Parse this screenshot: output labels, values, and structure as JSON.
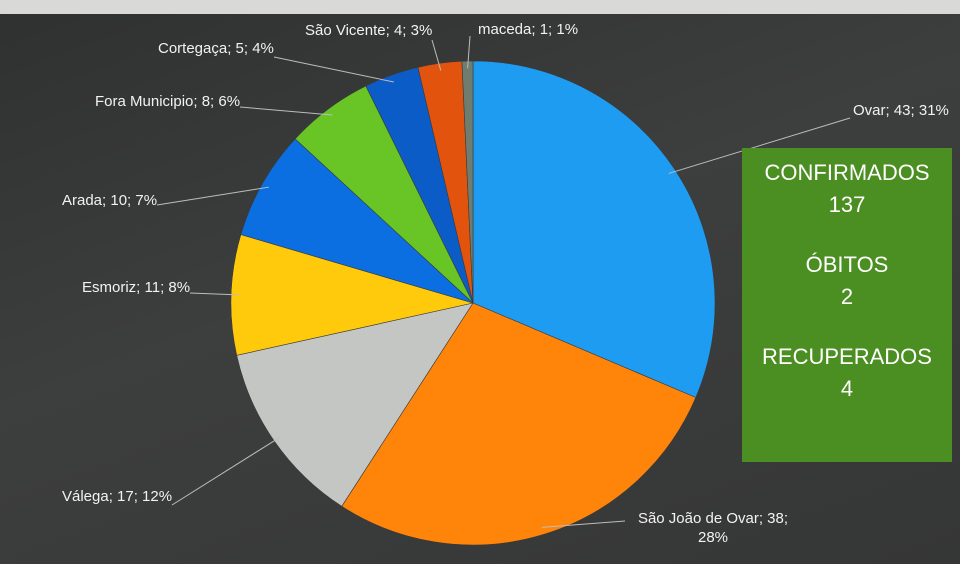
{
  "chart_data": {
    "type": "pie",
    "values": [
      43,
      38,
      17,
      11,
      10,
      8,
      5,
      4,
      1
    ],
    "value_labels": [
      "Ovar; 43; 31%",
      "São João de Ovar; 38; 28%",
      "Válega; 17; 12%",
      "Esmoriz; 11; 8%",
      "Arada; 10; 7%",
      "Fora Municipio; 8; 6%",
      "Cortegaça; 5; 4%",
      "São Vicente; 4; 3%",
      "maceda; 1; 1%"
    ],
    "colors": [
      "#1e9cf2",
      "#ff840a",
      "#c3c6c3",
      "#ffc90c",
      "#0b6fe2",
      "#69c526",
      "#0c5cc8",
      "#e2540e",
      "#6f7d70"
    ]
  },
  "panel": {
    "items": [
      {
        "label": "CONFIRMADOS",
        "value": 137
      },
      {
        "label": "ÓBITOS",
        "value": 2
      },
      {
        "label": "RECUPERADOS",
        "value": 4
      }
    ]
  }
}
